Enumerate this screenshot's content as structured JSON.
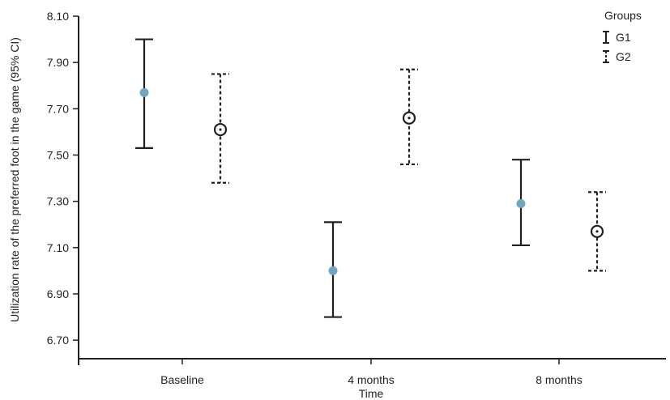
{
  "chart_data": {
    "type": "errorbar",
    "xlabel": "Time",
    "ylabel": "Utilization rate of the preferred foot in the game (95% CI)",
    "categories": [
      "Baseline",
      "4 months",
      "8 months"
    ],
    "ylim": [
      6.62,
      8.1
    ],
    "yticks": [
      "8.10",
      "7.90",
      "7.70",
      "7.50",
      "7.30",
      "7.10",
      "6.90",
      "6.70"
    ],
    "grid": false,
    "legend": {
      "title": "Groups",
      "position": "top-right"
    },
    "colors": {
      "g1_marker": "#6fa8bd",
      "axis": "#231f20"
    },
    "series": [
      {
        "name": "G1",
        "style": "solid",
        "marker": "filled-circle",
        "mean": [
          7.77,
          7.0,
          7.29
        ],
        "lower": [
          7.53,
          6.8,
          7.11
        ],
        "upper": [
          8.0,
          7.21,
          7.48
        ]
      },
      {
        "name": "G2",
        "style": "dashed",
        "marker": "open-circle",
        "mean": [
          7.61,
          7.66,
          7.17
        ],
        "lower": [
          7.38,
          7.46,
          7.0
        ],
        "upper": [
          7.85,
          7.87,
          7.34
        ]
      }
    ]
  }
}
